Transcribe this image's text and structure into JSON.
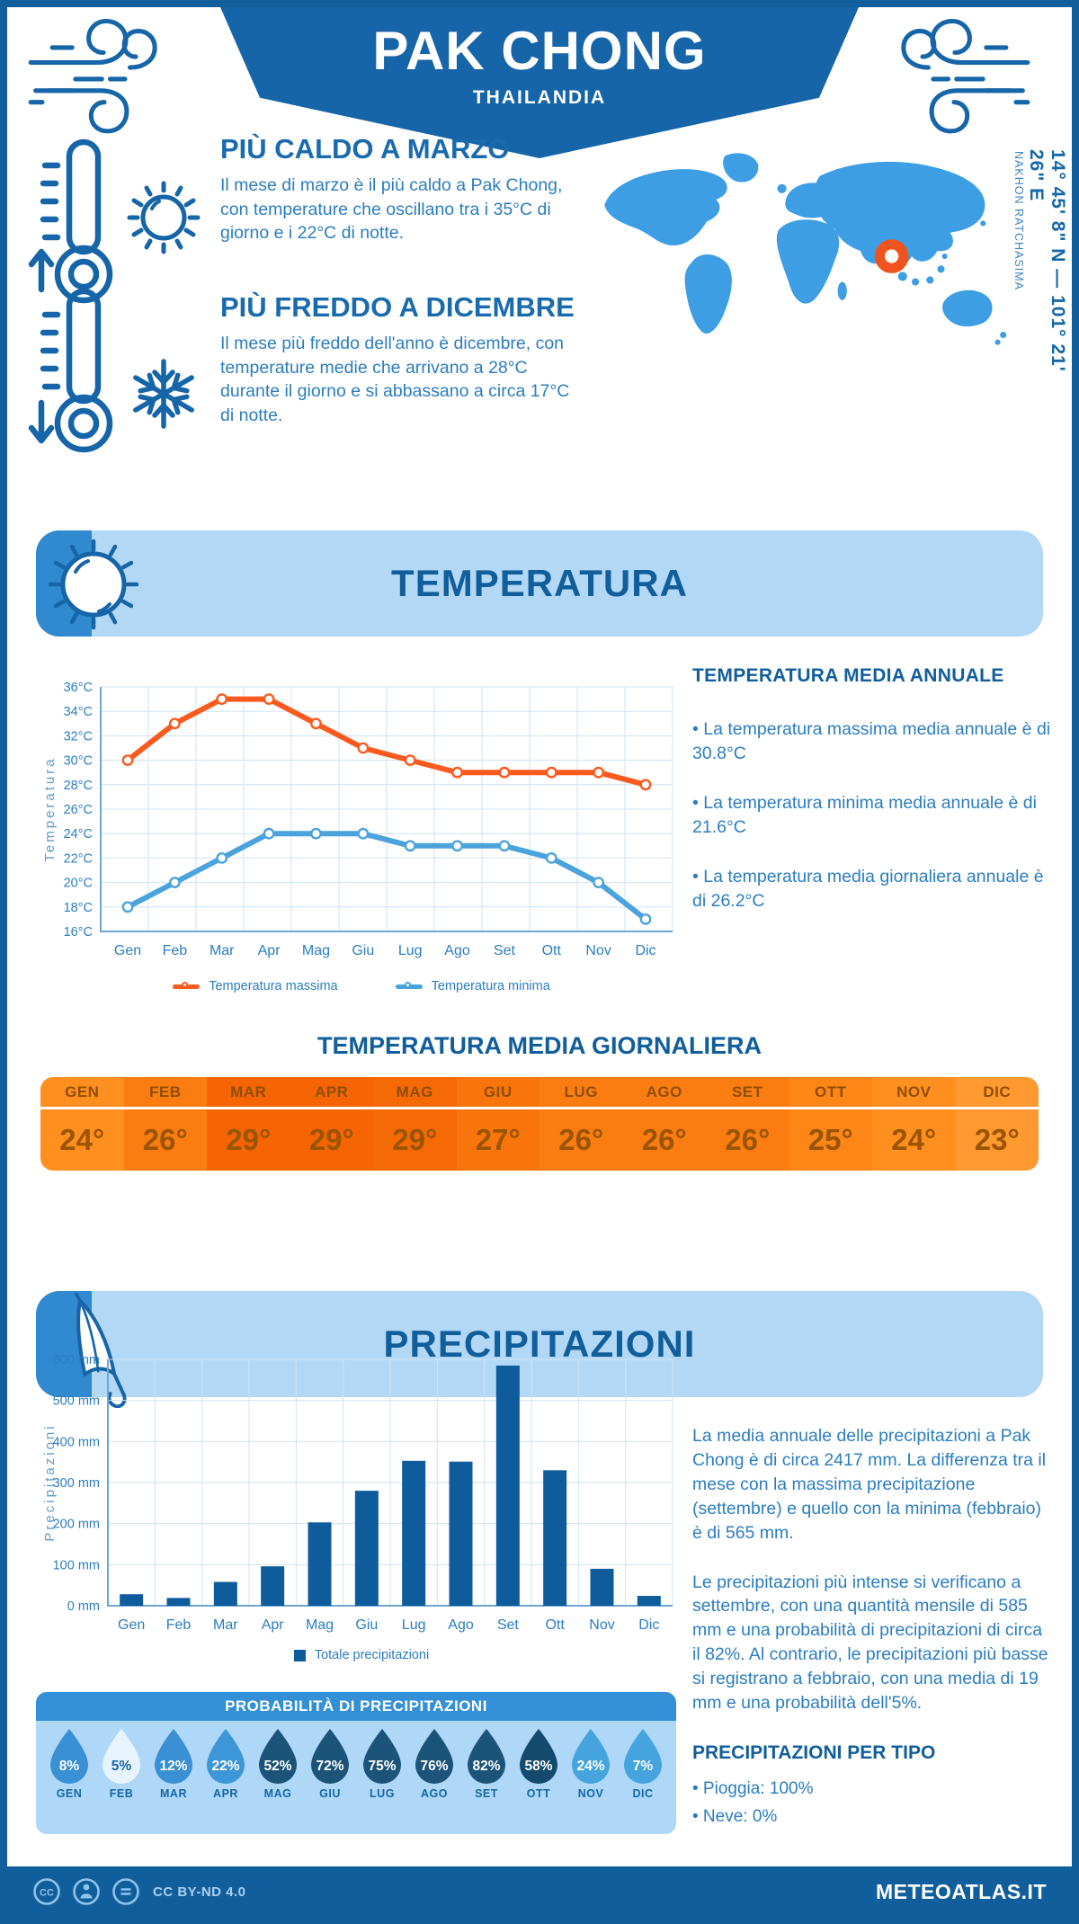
{
  "header": {
    "title": "PAK CHONG",
    "subtitle": "THAILANDIA"
  },
  "highlights": [
    {
      "title": "PIÙ CALDO A MARZO",
      "text": "Il mese di marzo è il più caldo a Pak Chong, con temperature che oscillano tra i 35°C di giorno e i 22°C di notte."
    },
    {
      "title": "PIÙ FREDDO A DICEMBRE",
      "text": "Il mese più freddo dell'anno è dicembre, con temperature medie che arrivano a 28°C durante il giorno e si abbassano a circa 17°C di notte."
    }
  ],
  "map": {
    "coordinates": "14° 45' 8\" N — 101° 21' 26\" E",
    "region": "NAKHON RATCHASIMA",
    "map_color": "#3D9EE4",
    "marker_color": "#F0541E"
  },
  "temperature_section": {
    "banner": "TEMPERATURA",
    "annual": {
      "title": "TEMPERATURA MEDIA ANNUALE",
      "bullets": [
        "• La temperatura massima media annuale è di 30.8°C",
        "• La temperatura minima media annuale è di 21.6°C",
        "• La temperatura media giornaliera annuale è di 26.2°C"
      ]
    },
    "daily": {
      "title": "TEMPERATURA MEDIA GIORNALIERA",
      "columns": [
        {
          "month": "GEN",
          "value": "24°",
          "bg": "#FF8F1F"
        },
        {
          "month": "FEB",
          "value": "26°",
          "bg": "#FB7D11"
        },
        {
          "month": "MAR",
          "value": "29°",
          "bg": "#F56504"
        },
        {
          "month": "APR",
          "value": "29°",
          "bg": "#F56504"
        },
        {
          "month": "MAG",
          "value": "29°",
          "bg": "#F66A06"
        },
        {
          "month": "GIU",
          "value": "27°",
          "bg": "#F9740B"
        },
        {
          "month": "LUG",
          "value": "26°",
          "bg": "#FB7D11"
        },
        {
          "month": "AGO",
          "value": "26°",
          "bg": "#FB7D11"
        },
        {
          "month": "SET",
          "value": "26°",
          "bg": "#FB7D11"
        },
        {
          "month": "OTT",
          "value": "25°",
          "bg": "#FD8617"
        },
        {
          "month": "NOV",
          "value": "24°",
          "bg": "#FF8F1F"
        },
        {
          "month": "DIC",
          "value": "23°",
          "bg": "#FF9930"
        }
      ]
    }
  },
  "precipitation_section": {
    "banner": "PRECIPITAZIONI",
    "paragraphs": [
      "La media annuale delle precipitazioni a Pak Chong è di circa 2417 mm. La differenza tra il mese con la massima precipitazione (settembre) e quello con la minima (febbraio) è di 565 mm.",
      "Le precipitazioni più intense si verificano a settembre, con una quantità mensile di 585 mm e una probabilità di precipitazioni di circa il 82%. Al contrario, le precipitazioni più basse si registrano a febbraio, con una media di 19 mm e una probabilità dell'5%."
    ],
    "probability": {
      "title": "PROBABILITÀ DI PRECIPITAZIONI",
      "drops": [
        {
          "month": "GEN",
          "value": "8%",
          "fill": "#3990D4",
          "text": "#FFFFFF"
        },
        {
          "month": "FEB",
          "value": "5%",
          "fill": "#E8F4FD",
          "text": "#1565A8"
        },
        {
          "month": "MAR",
          "value": "12%",
          "fill": "#3990D4",
          "text": "#FFFFFF"
        },
        {
          "month": "APR",
          "value": "22%",
          "fill": "#3D96D8",
          "text": "#FFFFFF"
        },
        {
          "month": "MAG",
          "value": "52%",
          "fill": "#1B5379",
          "text": "#FFFFFF"
        },
        {
          "month": "GIU",
          "value": "72%",
          "fill": "#1B5379",
          "text": "#FFFFFF"
        },
        {
          "month": "LUG",
          "value": "75%",
          "fill": "#1B5379",
          "text": "#FFFFFF"
        },
        {
          "month": "AGO",
          "value": "76%",
          "fill": "#1B5379",
          "text": "#FFFFFF"
        },
        {
          "month": "SET",
          "value": "82%",
          "fill": "#1B5379",
          "text": "#FFFFFF"
        },
        {
          "month": "OTT",
          "value": "58%",
          "fill": "#134A6E",
          "text": "#FFFFFF"
        },
        {
          "month": "NOV",
          "value": "24%",
          "fill": "#45A4DE",
          "text": "#FFFFFF"
        },
        {
          "month": "DIC",
          "value": "7%",
          "fill": "#45A4DE",
          "text": "#FFFFFF"
        }
      ]
    },
    "by_type": {
      "title": "PRECIPITAZIONI PER TIPO",
      "bullets": [
        "• Pioggia: 100%",
        "• Neve: 0%"
      ]
    }
  },
  "chart_data": [
    {
      "type": "line",
      "categories": [
        "Gen",
        "Feb",
        "Mar",
        "Apr",
        "Mag",
        "Giu",
        "Lug",
        "Ago",
        "Set",
        "Ott",
        "Nov",
        "Dic"
      ],
      "series": [
        {
          "name": "Temperatura massima",
          "color": "#FB5A1F",
          "values": [
            30,
            33,
            35,
            35,
            33,
            31,
            30,
            29,
            29,
            29,
            29,
            28
          ]
        },
        {
          "name": "Temperatura minima",
          "color": "#4BA3DD",
          "values": [
            18,
            20,
            22,
            24,
            24,
            24,
            23,
            23,
            23,
            22,
            20,
            17
          ]
        }
      ],
      "ylabel": "Temperatura",
      "ylim": [
        16,
        36
      ],
      "ytick_step": 2,
      "ytick_suffix": "°C",
      "grid": true,
      "legend_position": "bottom"
    },
    {
      "type": "bar",
      "categories": [
        "Gen",
        "Feb",
        "Mar",
        "Apr",
        "Mag",
        "Giu",
        "Lug",
        "Ago",
        "Set",
        "Ott",
        "Nov",
        "Dic"
      ],
      "series": [
        {
          "name": "Totale precipitazioni",
          "color": "#0F5C9C",
          "values": [
            28,
            19,
            58,
            96,
            203,
            280,
            353,
            351,
            585,
            330,
            90,
            24
          ]
        }
      ],
      "ylabel": "Precipitazioni",
      "ylim": [
        0,
        600
      ],
      "ytick_step": 100,
      "ytick_suffix": " mm",
      "grid": true,
      "legend_position": "bottom"
    }
  ],
  "footer": {
    "license": "CC BY-ND 4.0",
    "site": "METEOATLAS.IT"
  },
  "colors": {
    "brand_dark": "#115E9C",
    "heading": "#1467A8",
    "body": "#2B7DC0",
    "panel_light": "#B3D8F6",
    "wedge": "#3189CF",
    "grid": "#CFE3F3",
    "axis": "#6FA6D2"
  }
}
